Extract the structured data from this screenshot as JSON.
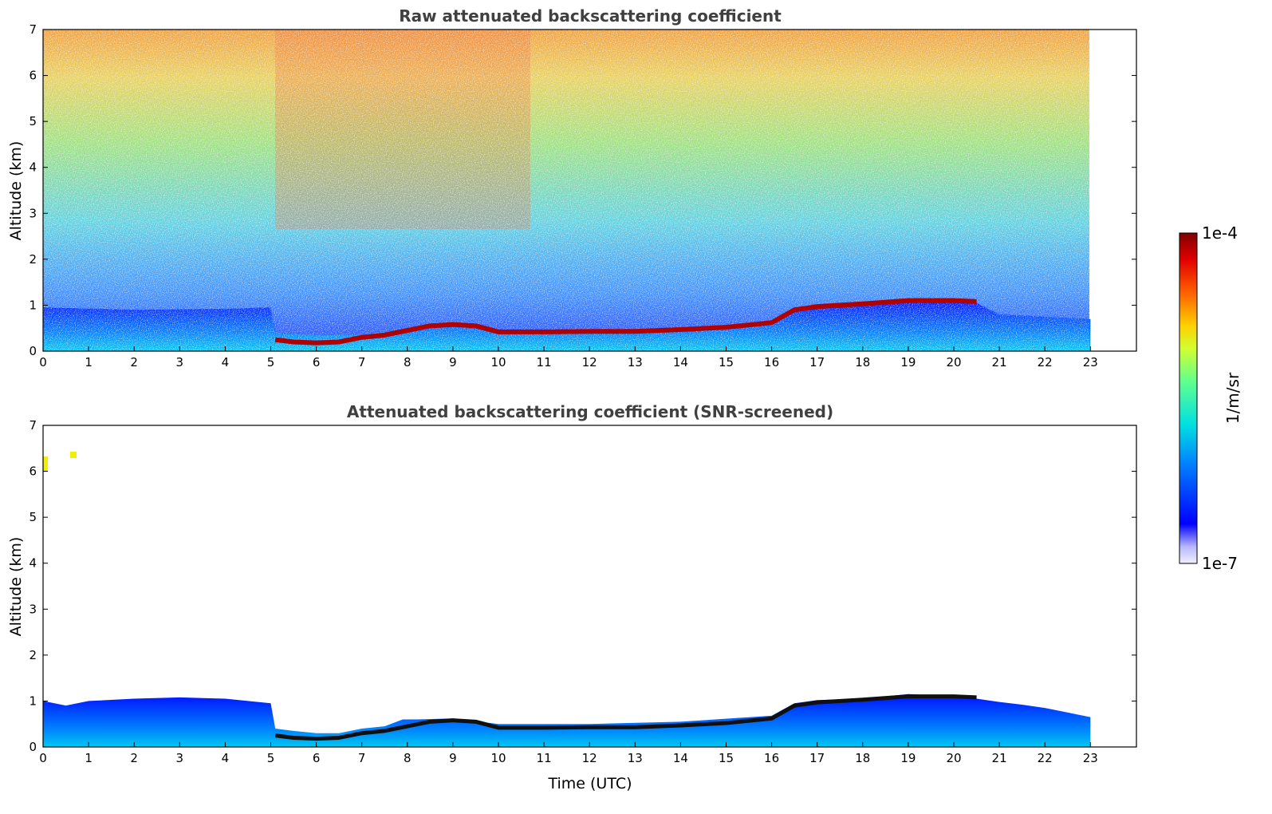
{
  "chart_data": [
    {
      "type": "heatmap",
      "title": "Raw attenuated backscattering coefficient",
      "xlabel": "",
      "ylabel": "Altitude (km)",
      "xlim": [
        0,
        24
      ],
      "ylim": [
        0,
        7
      ],
      "x_ticks": [
        "0",
        "1",
        "2",
        "3",
        "4",
        "5",
        "6",
        "7",
        "8",
        "9",
        "10",
        "11",
        "12",
        "13",
        "14",
        "15",
        "16",
        "17",
        "18",
        "19",
        "20",
        "21",
        "22",
        "23"
      ],
      "y_ticks": [
        "0",
        "1",
        "2",
        "3",
        "4",
        "5",
        "6",
        "7"
      ],
      "data_extent_hours": [
        0,
        23
      ],
      "boundary_layer_top_km": {
        "x": [
          0,
          2,
          4,
          5,
          5.1,
          6,
          7,
          8,
          9,
          10,
          12,
          14,
          16,
          16.6,
          17.5,
          18.5,
          19.5,
          20.5,
          21,
          22,
          23
        ],
        "y": [
          0.95,
          0.9,
          0.92,
          0.95,
          0.4,
          0.35,
          0.35,
          0.5,
          0.6,
          0.45,
          0.45,
          0.5,
          0.65,
          0.95,
          1.0,
          1.1,
          1.1,
          1.05,
          0.8,
          0.75,
          0.7
        ]
      },
      "cloud_layer_km": {
        "x": [
          5.1,
          5.5,
          6,
          6.5,
          7,
          7.5,
          8,
          8.5,
          9,
          9.5,
          10,
          11,
          12,
          13,
          14,
          15,
          16,
          16.5,
          17,
          18,
          19,
          20,
          20.5
        ],
        "y": [
          0.25,
          0.2,
          0.18,
          0.2,
          0.3,
          0.35,
          0.45,
          0.55,
          0.58,
          0.55,
          0.42,
          0.42,
          0.43,
          0.43,
          0.47,
          0.52,
          0.62,
          0.9,
          0.97,
          1.03,
          1.1,
          1.1,
          1.08
        ]
      }
    },
    {
      "type": "heatmap",
      "title": "Attenuated backscattering coefficient (SNR-screened)",
      "xlabel": "Time (UTC)",
      "ylabel": "Altitude (km)",
      "xlim": [
        0,
        24
      ],
      "ylim": [
        0,
        7
      ],
      "x_ticks": [
        "0",
        "1",
        "2",
        "3",
        "4",
        "5",
        "6",
        "7",
        "8",
        "9",
        "10",
        "11",
        "12",
        "13",
        "14",
        "15",
        "16",
        "17",
        "18",
        "19",
        "20",
        "21",
        "22",
        "23"
      ],
      "y_ticks": [
        "0",
        "1",
        "2",
        "3",
        "4",
        "5",
        "6",
        "7"
      ],
      "data_extent_hours": [
        0,
        23
      ],
      "screened_top_km": {
        "x": [
          0,
          0.5,
          1,
          2,
          3,
          4,
          4.5,
          5,
          5.1,
          5.5,
          6,
          6.5,
          7,
          7.5,
          7.9,
          8.2,
          9,
          10,
          12,
          14,
          16,
          16.5,
          17,
          18,
          19,
          20,
          20.5,
          21,
          21.5,
          22,
          23
        ],
        "y": [
          1.0,
          0.9,
          1.0,
          1.05,
          1.08,
          1.05,
          1.0,
          0.95,
          0.4,
          0.35,
          0.3,
          0.3,
          0.4,
          0.45,
          0.6,
          0.6,
          0.62,
          0.5,
          0.5,
          0.55,
          0.68,
          0.95,
          1.02,
          1.05,
          1.15,
          1.1,
          1.05,
          0.98,
          0.92,
          0.85,
          0.65
        ]
      },
      "cloud_layer_km": {
        "x": [
          5.1,
          5.5,
          6,
          6.5,
          7,
          7.5,
          8,
          8.5,
          9,
          9.5,
          10,
          11,
          12,
          13,
          14,
          15,
          16,
          16.5,
          17,
          18,
          19,
          20,
          20.5
        ],
        "y": [
          0.25,
          0.2,
          0.18,
          0.2,
          0.3,
          0.35,
          0.45,
          0.55,
          0.58,
          0.55,
          0.42,
          0.42,
          0.43,
          0.43,
          0.47,
          0.52,
          0.62,
          0.9,
          0.97,
          1.03,
          1.1,
          1.1,
          1.08
        ]
      }
    }
  ],
  "colorbar": {
    "label": "1/m/sr",
    "max_label": "1e-4",
    "min_label": "1e-7",
    "colormap": "jet",
    "colors": [
      "#f0f0ff",
      "#b8b8ff",
      "#0000ff",
      "#0080ff",
      "#00e0e0",
      "#60ff90",
      "#d0ff30",
      "#ffd000",
      "#ff6000",
      "#e00000",
      "#800000"
    ]
  }
}
